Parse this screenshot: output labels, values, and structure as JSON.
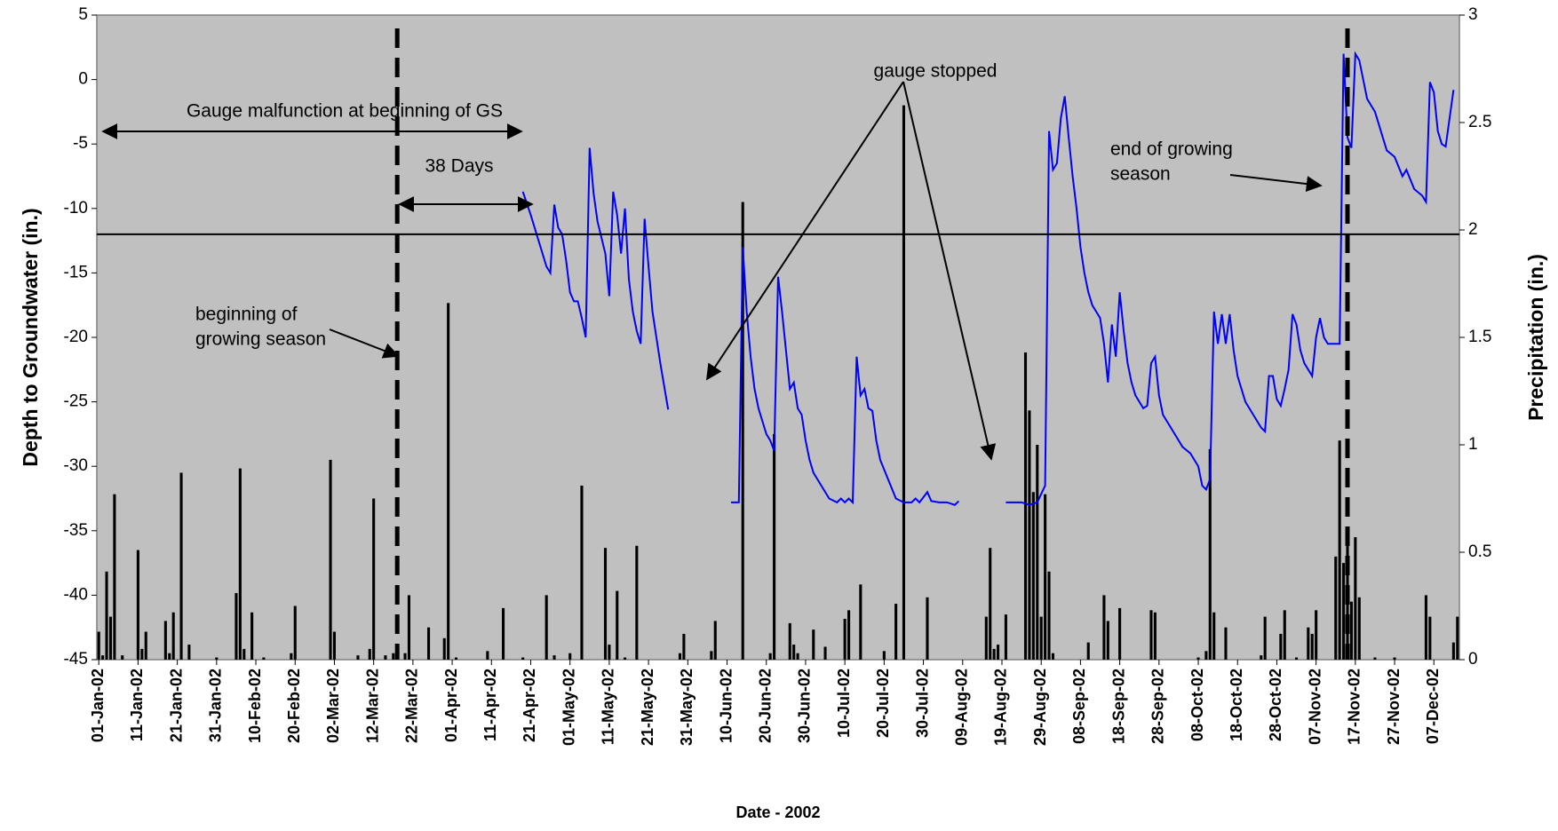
{
  "chart_data": {
    "type": "combo",
    "xlabel": "Date - 2002",
    "ylabel": "Depth to Groundwater (in.)",
    "y2label": "Precipitation (in.)",
    "xlim": [
      "2002-01-01",
      "2002-12-13"
    ],
    "xticks": [
      {
        "value": "2002-01-01",
        "label": "01-Jan-02"
      },
      {
        "value": "2002-01-11",
        "label": "11-Jan-02"
      },
      {
        "value": "2002-01-21",
        "label": "21-Jan-02"
      },
      {
        "value": "2002-01-31",
        "label": "31-Jan-02"
      },
      {
        "value": "2002-02-10",
        "label": "10-Feb-02"
      },
      {
        "value": "2002-02-20",
        "label": "20-Feb-02"
      },
      {
        "value": "2002-03-02",
        "label": "02-Mar-02"
      },
      {
        "value": "2002-03-12",
        "label": "12-Mar-02"
      },
      {
        "value": "2002-03-22",
        "label": "22-Mar-02"
      },
      {
        "value": "2002-04-01",
        "label": "01-Apr-02"
      },
      {
        "value": "2002-04-11",
        "label": "11-Apr-02"
      },
      {
        "value": "2002-04-21",
        "label": "21-Apr-02"
      },
      {
        "value": "2002-05-01",
        "label": "01-May-02"
      },
      {
        "value": "2002-05-11",
        "label": "11-May-02"
      },
      {
        "value": "2002-05-21",
        "label": "21-May-02"
      },
      {
        "value": "2002-05-31",
        "label": "31-May-02"
      },
      {
        "value": "2002-06-10",
        "label": "10-Jun-02"
      },
      {
        "value": "2002-06-20",
        "label": "20-Jun-02"
      },
      {
        "value": "2002-06-30",
        "label": "30-Jun-02"
      },
      {
        "value": "2002-07-10",
        "label": "10-Jul-02"
      },
      {
        "value": "2002-07-20",
        "label": "20-Jul-02"
      },
      {
        "value": "2002-07-30",
        "label": "30-Jul-02"
      },
      {
        "value": "2002-08-09",
        "label": "09-Aug-02"
      },
      {
        "value": "2002-08-19",
        "label": "19-Aug-02"
      },
      {
        "value": "2002-08-29",
        "label": "29-Aug-02"
      },
      {
        "value": "2002-09-08",
        "label": "08-Sep-02"
      },
      {
        "value": "2002-09-18",
        "label": "18-Sep-02"
      },
      {
        "value": "2002-09-28",
        "label": "28-Sep-02"
      },
      {
        "value": "2002-10-08",
        "label": "08-Oct-02"
      },
      {
        "value": "2002-10-18",
        "label": "18-Oct-02"
      },
      {
        "value": "2002-10-28",
        "label": "28-Oct-02"
      },
      {
        "value": "2002-11-07",
        "label": "07-Nov-02"
      },
      {
        "value": "2002-11-17",
        "label": "17-Nov-02"
      },
      {
        "value": "2002-11-27",
        "label": "27-Nov-02"
      },
      {
        "value": "2002-12-07",
        "label": "07-Dec-02"
      }
    ],
    "ylim": [
      -45,
      5
    ],
    "yticks": [
      -45,
      -40,
      -35,
      -30,
      -25,
      -20,
      -15,
      -10,
      -5,
      0,
      5
    ],
    "y2lim": [
      0,
      3
    ],
    "y2ticks": [
      0,
      0.5,
      1,
      1.5,
      2,
      2.5,
      3
    ],
    "reference_line": -12,
    "vertical_lines": [
      "2002-03-18",
      "2002-11-15"
    ],
    "background": "#c0c0c0",
    "annotations": [
      "Gauge malfunction at beginning of GS",
      "38 Days",
      [
        "beginning of",
        "growing season"
      ],
      "gauge stopped",
      [
        "end of growing",
        "season"
      ]
    ],
    "series": [
      {
        "type": "bar",
        "axis": "y2",
        "color": "#000000",
        "x": [
          "2002-01-01",
          "2002-01-02",
          "2002-01-03",
          "2002-01-04",
          "2002-01-05",
          "2002-01-07",
          "2002-01-11",
          "2002-01-12",
          "2002-01-13",
          "2002-01-18",
          "2002-01-19",
          "2002-01-20",
          "2002-01-22",
          "2002-01-24",
          "2002-01-31",
          "2002-02-05",
          "2002-02-06",
          "2002-02-07",
          "2002-02-09",
          "2002-02-12",
          "2002-02-19",
          "2002-02-20",
          "2002-03-01",
          "2002-03-02",
          "2002-03-08",
          "2002-03-11",
          "2002-03-12",
          "2002-03-15",
          "2002-03-17",
          "2002-03-20",
          "2002-03-21",
          "2002-03-26",
          "2002-03-30",
          "2002-03-31",
          "2002-04-02",
          "2002-04-10",
          "2002-04-14",
          "2002-04-19",
          "2002-04-25",
          "2002-04-27",
          "2002-05-01",
          "2002-05-04",
          "2002-05-10",
          "2002-05-11",
          "2002-05-13",
          "2002-05-15",
          "2002-05-18",
          "2002-05-29",
          "2002-05-30",
          "2002-06-06",
          "2002-06-07",
          "2002-06-14",
          "2002-06-21",
          "2002-06-22",
          "2002-06-26",
          "2002-06-27",
          "2002-06-28",
          "2002-07-02",
          "2002-07-05",
          "2002-07-10",
          "2002-07-11",
          "2002-07-14",
          "2002-07-20",
          "2002-07-23",
          "2002-07-25",
          "2002-07-31",
          "2002-08-15",
          "2002-08-16",
          "2002-08-17",
          "2002-08-18",
          "2002-08-20",
          "2002-08-25",
          "2002-08-26",
          "2002-08-27",
          "2002-08-28",
          "2002-08-29",
          "2002-08-30",
          "2002-08-31",
          "2002-09-01",
          "2002-09-10",
          "2002-09-14",
          "2002-09-15",
          "2002-09-18",
          "2002-09-26",
          "2002-09-27",
          "2002-10-08",
          "2002-10-10",
          "2002-10-11",
          "2002-10-12",
          "2002-10-15",
          "2002-10-24",
          "2002-10-25",
          "2002-10-29",
          "2002-10-30",
          "2002-11-02",
          "2002-11-05",
          "2002-11-06",
          "2002-11-07",
          "2002-11-12",
          "2002-11-13",
          "2002-11-14",
          "2002-11-15",
          "2002-11-16",
          "2002-11-17",
          "2002-11-18",
          "2002-11-22",
          "2002-11-27",
          "2002-12-05",
          "2002-12-06",
          "2002-12-12",
          "2002-12-13"
        ],
        "values": [
          0.13,
          0.02,
          0.41,
          0.2,
          0.77,
          0.02,
          0.51,
          0.05,
          0.13,
          0.18,
          0.03,
          0.22,
          0.87,
          0.07,
          0.01,
          0.31,
          0.89,
          0.05,
          0.22,
          0.01,
          0.03,
          0.25,
          0.93,
          0.13,
          0.02,
          0.05,
          0.75,
          0.02,
          0.03,
          0.03,
          0.3,
          0.15,
          0.1,
          1.66,
          0.01,
          0.04,
          0.24,
          0.01,
          0.3,
          0.02,
          0.03,
          0.81,
          0.52,
          0.07,
          0.32,
          0.01,
          0.53,
          0.03,
          0.12,
          0.04,
          0.18,
          2.13,
          0.03,
          1.05,
          0.17,
          0.07,
          0.03,
          0.14,
          0.06,
          0.19,
          0.23,
          0.35,
          0.04,
          0.26,
          2.58,
          0.29,
          0.2,
          0.52,
          0.05,
          0.07,
          0.21,
          1.43,
          1.16,
          0.78,
          1.0,
          0.2,
          0.77,
          0.41,
          0.03,
          0.08,
          0.3,
          0.18,
          0.24,
          0.23,
          0.22,
          0.01,
          0.04,
          0.98,
          0.22,
          0.15,
          0.02,
          0.2,
          0.12,
          0.23,
          0.01,
          0.15,
          0.12,
          0.23,
          0.48,
          1.02,
          0.45,
          0.55,
          0.27,
          0.57,
          0.29,
          0.01,
          0.01,
          0.3,
          0.2,
          0.08,
          0.2
        ]
      },
      {
        "type": "line",
        "color": "#0000ff",
        "x": [
          "2002-04-19",
          "2002-04-21",
          "2002-04-23",
          "2002-04-25",
          "2002-04-26",
          "2002-04-27",
          "2002-04-28",
          "2002-04-29",
          "2002-04-30",
          "2002-05-01",
          "2002-05-02",
          "2002-05-03",
          "2002-05-04",
          "2002-05-05",
          "2002-05-06",
          "2002-05-07",
          "2002-05-08",
          "2002-05-10",
          "2002-05-11",
          "2002-05-12",
          "2002-05-13",
          "2002-05-14",
          "2002-05-15",
          "2002-05-16",
          "2002-05-17",
          "2002-05-18",
          "2002-05-19",
          "2002-05-20",
          "2002-05-21",
          "2002-05-22",
          "2002-05-24",
          "2002-05-26",
          "2002-06-01",
          "2002-06-11",
          "2002-06-12",
          "2002-06-13",
          "2002-06-14",
          "2002-06-15",
          "2002-06-16",
          "2002-06-17",
          "2002-06-18",
          "2002-06-19",
          "2002-06-20",
          "2002-06-21",
          "2002-06-22",
          "2002-06-23",
          "2002-06-24",
          "2002-06-25",
          "2002-06-26",
          "2002-06-27",
          "2002-06-28",
          "2002-06-29",
          "2002-06-30",
          "2002-07-01",
          "2002-07-02",
          "2002-07-04",
          "2002-07-06",
          "2002-07-08",
          "2002-07-09",
          "2002-07-10",
          "2002-07-11",
          "2002-07-12",
          "2002-07-13",
          "2002-07-14",
          "2002-07-15",
          "2002-07-16",
          "2002-07-17",
          "2002-07-18",
          "2002-07-19",
          "2002-07-21",
          "2002-07-23",
          "2002-07-25",
          "2002-07-27",
          "2002-07-28",
          "2002-07-29",
          "2002-07-31",
          "2002-08-01",
          "2002-08-03",
          "2002-08-05",
          "2002-08-07",
          "2002-08-08",
          "2002-08-14",
          "2002-08-20",
          "2002-08-22",
          "2002-08-24",
          "2002-08-26",
          "2002-08-28",
          "2002-08-30",
          "2002-08-31",
          "2002-09-01",
          "2002-09-02",
          "2002-09-03",
          "2002-09-04",
          "2002-09-05",
          "2002-09-06",
          "2002-09-07",
          "2002-09-08",
          "2002-09-09",
          "2002-09-10",
          "2002-09-11",
          "2002-09-12",
          "2002-09-13",
          "2002-09-14",
          "2002-09-15",
          "2002-09-16",
          "2002-09-17",
          "2002-09-18",
          "2002-09-19",
          "2002-09-20",
          "2002-09-21",
          "2002-09-22",
          "2002-09-23",
          "2002-09-24",
          "2002-09-25",
          "2002-09-26",
          "2002-09-27",
          "2002-09-28",
          "2002-09-29",
          "2002-09-30",
          "2002-10-02",
          "2002-10-04",
          "2002-10-06",
          "2002-10-08",
          "2002-10-09",
          "2002-10-10",
          "2002-10-11",
          "2002-10-12",
          "2002-10-13",
          "2002-10-14",
          "2002-10-15",
          "2002-10-16",
          "2002-10-17",
          "2002-10-18",
          "2002-10-20",
          "2002-10-22",
          "2002-10-24",
          "2002-10-25",
          "2002-10-26",
          "2002-10-27",
          "2002-10-28",
          "2002-10-29",
          "2002-10-30",
          "2002-10-31",
          "2002-11-01",
          "2002-11-02",
          "2002-11-03",
          "2002-11-04",
          "2002-11-06",
          "2002-11-07",
          "2002-11-08",
          "2002-11-09",
          "2002-11-10",
          "2002-11-13",
          "2002-11-14",
          "2002-11-15",
          "2002-11-16",
          "2002-11-17",
          "2002-11-18",
          "2002-11-20",
          "2002-11-22",
          "2002-11-24",
          "2002-11-25",
          "2002-11-27",
          "2002-11-29",
          "2002-11-30",
          "2002-12-02",
          "2002-12-04",
          "2002-12-05",
          "2002-12-06",
          "2002-12-07",
          "2002-12-08",
          "2002-12-09",
          "2002-12-10",
          "2002-12-11",
          "2002-12-12"
        ],
        "values": [
          -8.7,
          -10.5,
          -12.5,
          -14.5,
          -15,
          -9.7,
          -11.5,
          -12,
          -14,
          -16.5,
          -17.2,
          -17.2,
          -18.5,
          -20,
          -5.3,
          -8.8,
          -11,
          -13.5,
          -16.8,
          -8.7,
          -10.5,
          -13.5,
          -10,
          -15.5,
          -18,
          -19.5,
          -20.5,
          -10.8,
          -14.5,
          -18,
          -22,
          -25.6,
          null,
          -32.8,
          -32.8,
          -32.8,
          -13,
          -18,
          -21.5,
          -24,
          -25.5,
          -26.5,
          -27.5,
          -28,
          -28.8,
          -15.3,
          -18,
          -21,
          -24,
          -23.5,
          -25.5,
          -26,
          -28,
          -29.5,
          -30.5,
          -31.5,
          -32.5,
          -32.8,
          -32.5,
          -32.8,
          -32.5,
          -32.8,
          -21.5,
          -24.5,
          -24,
          -25.5,
          -25.7,
          -28,
          -29.5,
          -31,
          -32.5,
          -32.8,
          -32.8,
          -32.5,
          -32.8,
          -32,
          -32.7,
          -32.8,
          -32.8,
          -33,
          -32.7,
          null,
          -32.8,
          -32.8,
          -32.8,
          -33,
          -32.8,
          -31.5,
          -4,
          -7,
          -6.5,
          -3,
          -1.3,
          -4.5,
          -7.5,
          -10,
          -13,
          -15,
          -16.5,
          -17.5,
          -18,
          -18.5,
          -20.5,
          -23.5,
          -19,
          -21.5,
          -16.5,
          -19.5,
          -22,
          -23.5,
          -24.5,
          -25,
          -25.5,
          -25.3,
          -22,
          -21.5,
          -24.5,
          -26,
          -26.5,
          -27.5,
          -28.5,
          -29,
          -30,
          -31.5,
          -31.8,
          -31,
          -18,
          -20.5,
          -18.2,
          -20.5,
          -18.2,
          -21,
          -23,
          -25,
          -26,
          -27,
          -27.3,
          -23,
          -23,
          -24.8,
          -25.3,
          -24,
          -22.5,
          -18.2,
          -19,
          -21,
          -22,
          -23,
          -20,
          -18.5,
          -20,
          -20.5,
          -20.5,
          2,
          -4.5,
          -5.3,
          2,
          1.5,
          -1.5,
          -2.5,
          -4.5,
          -5.5,
          -6,
          -7.5,
          -7,
          -8.5,
          -9,
          -9.5,
          -0.2,
          -1,
          -4,
          -5,
          -5.2,
          -3,
          -0.8
        ]
      }
    ]
  }
}
